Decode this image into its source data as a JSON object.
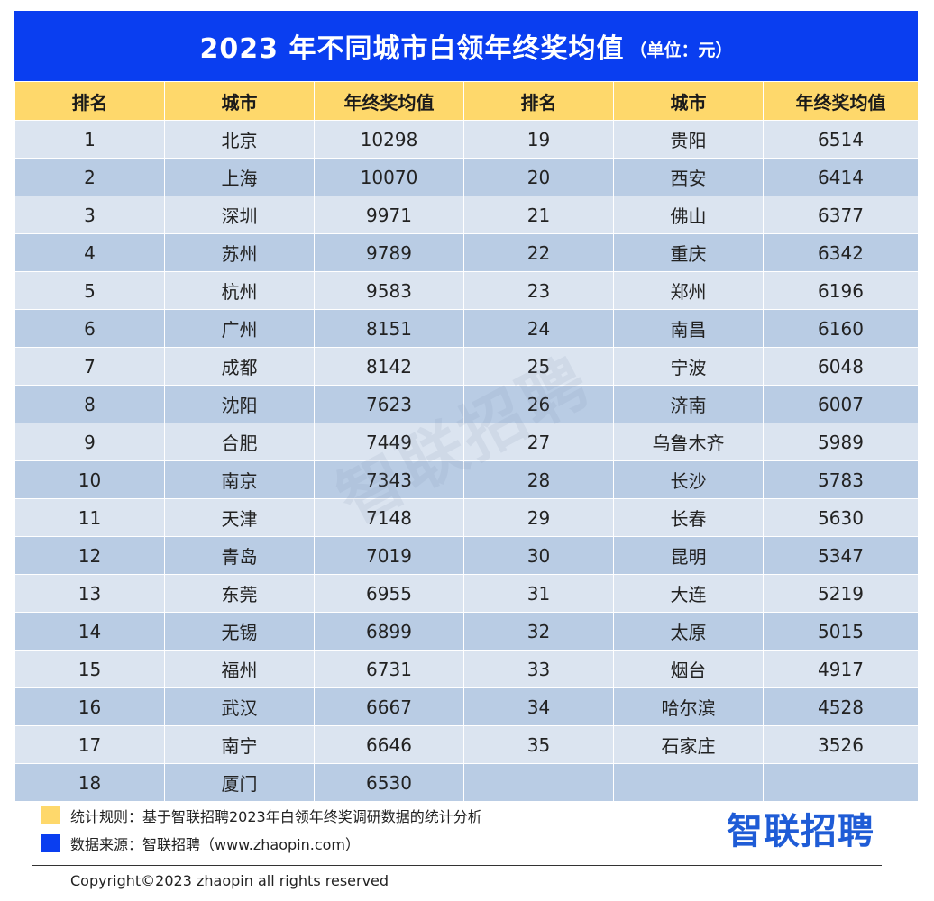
{
  "title": {
    "main": "2023 年不同城市白领年终奖均值",
    "unit": "（单位：元）"
  },
  "headers": [
    "排名",
    "城市",
    "年终奖均值",
    "排名",
    "城市",
    "年终奖均值"
  ],
  "rows": [
    {
      "left": {
        "rank": "1",
        "city": "北京",
        "value": "10298"
      },
      "right": {
        "rank": "19",
        "city": "贵阳",
        "value": "6514"
      }
    },
    {
      "left": {
        "rank": "2",
        "city": "上海",
        "value": "10070"
      },
      "right": {
        "rank": "20",
        "city": "西安",
        "value": "6414"
      }
    },
    {
      "left": {
        "rank": "3",
        "city": "深圳",
        "value": "9971"
      },
      "right": {
        "rank": "21",
        "city": "佛山",
        "value": "6377"
      }
    },
    {
      "left": {
        "rank": "4",
        "city": "苏州",
        "value": "9789"
      },
      "right": {
        "rank": "22",
        "city": "重庆",
        "value": "6342"
      }
    },
    {
      "left": {
        "rank": "5",
        "city": "杭州",
        "value": "9583"
      },
      "right": {
        "rank": "23",
        "city": "郑州",
        "value": "6196"
      }
    },
    {
      "left": {
        "rank": "6",
        "city": "广州",
        "value": "8151"
      },
      "right": {
        "rank": "24",
        "city": "南昌",
        "value": "6160"
      }
    },
    {
      "left": {
        "rank": "7",
        "city": "成都",
        "value": "8142"
      },
      "right": {
        "rank": "25",
        "city": "宁波",
        "value": "6048"
      }
    },
    {
      "left": {
        "rank": "8",
        "city": "沈阳",
        "value": "7623"
      },
      "right": {
        "rank": "26",
        "city": "济南",
        "value": "6007"
      }
    },
    {
      "left": {
        "rank": "9",
        "city": "合肥",
        "value": "7449"
      },
      "right": {
        "rank": "27",
        "city": "乌鲁木齐",
        "value": "5989"
      }
    },
    {
      "left": {
        "rank": "10",
        "city": "南京",
        "value": "7343"
      },
      "right": {
        "rank": "28",
        "city": "长沙",
        "value": "5783"
      }
    },
    {
      "left": {
        "rank": "11",
        "city": "天津",
        "value": "7148"
      },
      "right": {
        "rank": "29",
        "city": "长春",
        "value": "5630"
      }
    },
    {
      "left": {
        "rank": "12",
        "city": "青岛",
        "value": "7019"
      },
      "right": {
        "rank": "30",
        "city": "昆明",
        "value": "5347"
      }
    },
    {
      "left": {
        "rank": "13",
        "city": "东莞",
        "value": "6955"
      },
      "right": {
        "rank": "31",
        "city": "大连",
        "value": "5219"
      }
    },
    {
      "left": {
        "rank": "14",
        "city": "无锡",
        "value": "6899"
      },
      "right": {
        "rank": "32",
        "city": "太原",
        "value": "5015"
      }
    },
    {
      "left": {
        "rank": "15",
        "city": "福州",
        "value": "6731"
      },
      "right": {
        "rank": "33",
        "city": "烟台",
        "value": "4917"
      }
    },
    {
      "left": {
        "rank": "16",
        "city": "武汉",
        "value": "6667"
      },
      "right": {
        "rank": "34",
        "city": "哈尔滨",
        "value": "4528"
      }
    },
    {
      "left": {
        "rank": "17",
        "city": "南宁",
        "value": "6646"
      },
      "right": {
        "rank": "35",
        "city": "石家庄",
        "value": "3526"
      }
    },
    {
      "left": {
        "rank": "18",
        "city": "厦门",
        "value": "6530"
      },
      "right": {
        "rank": "",
        "city": "",
        "value": ""
      }
    }
  ],
  "legend": {
    "rule": "统计规则：基于智联招聘2023年白领年终奖调研数据的统计分析",
    "source": "数据来源：智联招聘（www.zhaopin.com）"
  },
  "logo": "智联招聘",
  "watermark": "智联招聘",
  "copyright": "Copyright©2023 zhaopin all rights reserved",
  "colors": {
    "title_bg": "#0a3ef0",
    "header_bg": "#fed86b",
    "row_light": "#dbe4f0",
    "row_dark": "#b9cce4",
    "logo": "#1f5cd6"
  }
}
